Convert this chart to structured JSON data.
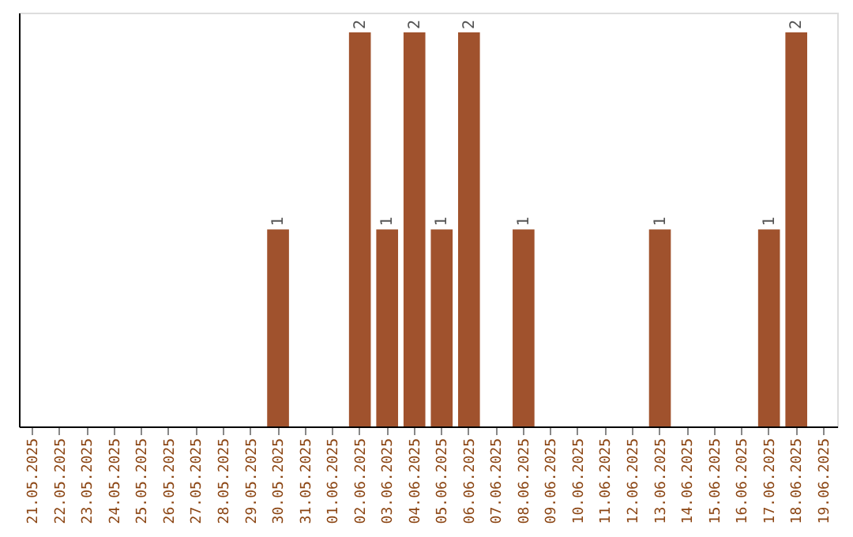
{
  "chart_data": {
    "type": "bar",
    "categories": [
      "21.05.2025",
      "22.05.2025",
      "23.05.2025",
      "24.05.2025",
      "25.05.2025",
      "26.05.2025",
      "27.05.2025",
      "28.05.2025",
      "29.05.2025",
      "30.05.2025",
      "31.05.2025",
      "01.06.2025",
      "02.06.2025",
      "03.06.2025",
      "04.06.2025",
      "05.06.2025",
      "06.06.2025",
      "07.06.2025",
      "08.06.2025",
      "09.06.2025",
      "10.06.2025",
      "11.06.2025",
      "12.06.2025",
      "13.06.2025",
      "14.06.2025",
      "15.06.2025",
      "16.06.2025",
      "17.06.2025",
      "18.06.2025",
      "19.06.2025"
    ],
    "values": [
      0,
      0,
      0,
      0,
      0,
      0,
      0,
      0,
      0,
      1,
      0,
      0,
      2,
      1,
      2,
      1,
      2,
      0,
      1,
      0,
      0,
      0,
      0,
      1,
      0,
      0,
      0,
      1,
      2,
      0
    ],
    "value_labels": [
      null,
      null,
      null,
      null,
      null,
      null,
      null,
      null,
      null,
      "1",
      null,
      null,
      "2",
      "1",
      "2",
      "1",
      "2",
      null,
      "1",
      null,
      null,
      null,
      null,
      "1",
      null,
      null,
      null,
      "1",
      "2",
      null
    ],
    "color": "#a0522d",
    "ylim": [
      0,
      2.1
    ],
    "grid": false
  }
}
